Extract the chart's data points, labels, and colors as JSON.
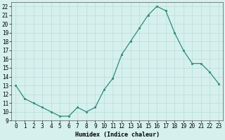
{
  "x": [
    0,
    1,
    2,
    3,
    4,
    5,
    6,
    7,
    8,
    9,
    10,
    11,
    12,
    13,
    14,
    15,
    16,
    17,
    18,
    19,
    20,
    21,
    22,
    23
  ],
  "y": [
    13,
    11.5,
    11,
    10.5,
    10,
    9.5,
    9.5,
    10.5,
    10,
    10.5,
    12.5,
    13.8,
    16.5,
    18,
    19.5,
    21,
    22,
    21.5,
    19,
    17,
    15.5,
    15.5,
    14.5,
    13.2
  ],
  "xlabel": "Humidex (Indice chaleur)",
  "line_color": "#2d8c7a",
  "marker_color": "#2d8c7a",
  "bg_color": "#d6f0ee",
  "grid_color": "#b8ddd8",
  "ylim": [
    9,
    22.5
  ],
  "xlim": [
    -0.5,
    23.5
  ],
  "yticks": [
    9,
    10,
    11,
    12,
    13,
    14,
    15,
    16,
    17,
    18,
    19,
    20,
    21,
    22
  ],
  "xticks": [
    0,
    1,
    2,
    3,
    4,
    5,
    6,
    7,
    8,
    9,
    10,
    11,
    12,
    13,
    14,
    15,
    16,
    17,
    18,
    19,
    20,
    21,
    22,
    23
  ],
  "xlabel_fontsize": 6.0,
  "tick_fontsize": 5.5
}
